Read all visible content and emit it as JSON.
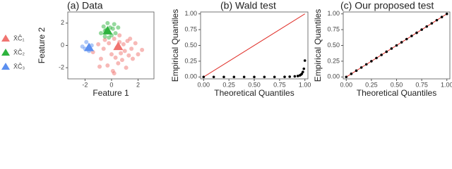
{
  "chart_data": [
    {
      "type": "scatter",
      "title": "(a) Data",
      "x_label": "Feature 1",
      "y_label": "Feature 2",
      "xlim": [
        -3.3,
        3.2
      ],
      "xticks": [
        -2,
        0,
        2
      ],
      "ylim": [
        -3,
        3
      ],
      "yticks": [
        -2,
        0,
        2
      ],
      "legend": "left",
      "series": [
        {
          "name": "X̄Ĉ₁",
          "color": "#f07470",
          "x": [
            -1.4,
            -1.0,
            -0.8,
            -0.6,
            -0.5,
            -0.3,
            -0.2,
            0.0,
            0.1,
            0.2,
            0.3,
            0.4,
            0.5,
            0.6,
            0.7,
            0.8,
            0.9,
            1.0,
            1.1,
            1.2,
            1.3,
            1.5,
            1.6,
            1.8,
            2.0,
            2.3,
            -0.9,
            0.2,
            0.6,
            1.4
          ],
          "y": [
            -0.6,
            0.1,
            -1.2,
            -0.3,
            0.5,
            -1.8,
            0.2,
            -0.8,
            -2.3,
            0.6,
            -1.1,
            -0.2,
            -1.6,
            0.3,
            -0.7,
            -1.3,
            0.1,
            -0.5,
            -2.0,
            0.4,
            -0.9,
            -0.3,
            -1.2,
            0.2,
            -0.8,
            -0.4,
            -1.9,
            -2.5,
            0.9,
            0.6
          ],
          "center": [
            0.5,
            -0.1
          ]
        },
        {
          "name": "X̄Ĉ₂",
          "color": "#2eb33e",
          "x": [
            -0.8,
            -0.6,
            -0.5,
            -0.4,
            -0.3,
            -0.2,
            -0.1,
            0.0,
            0.1,
            0.2,
            0.3,
            -0.5,
            -0.2,
            0.5
          ],
          "y": [
            1.1,
            1.7,
            0.8,
            1.4,
            2.0,
            1.2,
            1.6,
            0.9,
            1.5,
            1.9,
            1.1,
            1.3,
            0.7,
            1.6
          ],
          "center": [
            -0.3,
            1.3
          ]
        },
        {
          "name": "X̄Ĉ₃",
          "color": "#5b8ff0",
          "x": [
            -2.2,
            -1.9,
            -1.7,
            -1.5,
            -2.0
          ],
          "y": [
            -0.1,
            0.3,
            -0.5,
            0.0,
            -0.3
          ],
          "center": [
            -1.7,
            -0.2
          ]
        }
      ]
    },
    {
      "type": "scatter",
      "title": "(b) Wald test",
      "x_label": "Theoretical Quantiles",
      "y_label": "Empirical Quantiles",
      "xlim": [
        -0.03,
        1.03
      ],
      "xticks": [
        {
          "value": 0,
          "label": "0.00"
        },
        {
          "value": 0.25,
          "label": "0.25"
        },
        {
          "value": 0.5,
          "label": "0.50"
        },
        {
          "value": 0.75,
          "label": "0.75"
        },
        {
          "value": 1,
          "label": "1.00"
        }
      ],
      "ylim": [
        -0.03,
        1.03
      ],
      "yticks": [
        {
          "value": 0,
          "label": "0.00"
        },
        {
          "value": 0.25,
          "label": "0.25"
        },
        {
          "value": 0.5,
          "label": "0.50"
        },
        {
          "value": 0.75,
          "label": "0.75"
        },
        {
          "value": 1,
          "label": "1.00"
        }
      ],
      "reference_line": {
        "x": [
          0,
          1
        ],
        "y": [
          0,
          1
        ],
        "color": "#e0302a"
      },
      "series": [
        {
          "color": "#000000",
          "x": [
            0.0,
            0.1,
            0.2,
            0.3,
            0.4,
            0.5,
            0.6,
            0.7,
            0.8,
            0.85,
            0.9,
            0.93,
            0.95,
            0.96,
            0.97,
            0.98,
            0.99,
            1.0
          ],
          "y": [
            0,
            0,
            0,
            0,
            0,
            0,
            0,
            0,
            0.002,
            0.005,
            0.01,
            0.015,
            0.025,
            0.035,
            0.05,
            0.08,
            0.13,
            0.26
          ]
        }
      ]
    },
    {
      "type": "scatter",
      "title": "(c) Our proposed test",
      "x_label": "Theoretical Quantiles",
      "y_label": "Empirical Quantiles",
      "xlim": [
        -0.03,
        1.03
      ],
      "xticks": [
        {
          "value": 0,
          "label": "0.00"
        },
        {
          "value": 0.25,
          "label": "0.25"
        },
        {
          "value": 0.5,
          "label": "0.50"
        },
        {
          "value": 0.75,
          "label": "0.75"
        },
        {
          "value": 1,
          "label": "1.00"
        }
      ],
      "ylim": [
        -0.03,
        1.03
      ],
      "yticks": [
        {
          "value": 0,
          "label": "0.00"
        },
        {
          "value": 0.25,
          "label": "0.25"
        },
        {
          "value": 0.5,
          "label": "0.50"
        },
        {
          "value": 0.75,
          "label": "0.75"
        },
        {
          "value": 1,
          "label": "1.00"
        }
      ],
      "reference_line": {
        "x": [
          0,
          1
        ],
        "y": [
          0,
          1
        ],
        "color": "#e0302a"
      },
      "series": [
        {
          "color": "#000000",
          "x": [
            0,
            0.05,
            0.1,
            0.15,
            0.2,
            0.25,
            0.3,
            0.35,
            0.4,
            0.45,
            0.5,
            0.55,
            0.6,
            0.65,
            0.7,
            0.75,
            0.8,
            0.85,
            0.9,
            0.95,
            1.0
          ],
          "y": [
            0,
            0.05,
            0.1,
            0.15,
            0.2,
            0.25,
            0.3,
            0.35,
            0.4,
            0.45,
            0.5,
            0.55,
            0.6,
            0.65,
            0.7,
            0.75,
            0.8,
            0.85,
            0.9,
            0.95,
            1.0
          ]
        }
      ]
    }
  ]
}
